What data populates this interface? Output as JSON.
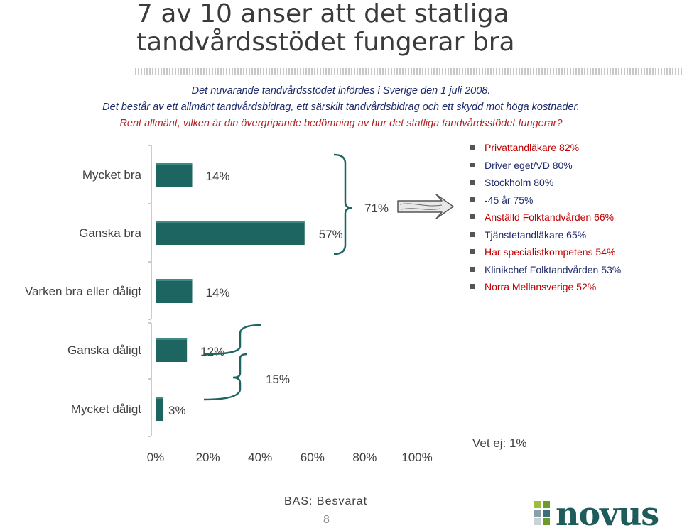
{
  "header": {
    "title_line1": "7 av 10 anser att det statliga",
    "title_line2": "tandvårdsstödet fungerar bra",
    "info_line1": "Det nuvarande tandvårdsstödet infördes i Sverige den 1 juli 2008.",
    "info_line2": "Det består av ett allmänt tandvårdsbidrag, ett särskilt tandvårdsbidrag och ett skydd mot höga kostnader.",
    "question": "Rent allmänt, vilken är din övergripande bedömning av hur det statliga tandvårdsstödet fungerar?"
  },
  "chart_data": {
    "type": "bar",
    "orientation": "horizontal",
    "categories": [
      "Mycket bra",
      "Ganska bra",
      "Varken bra eller dåligt",
      "Ganska dåligt",
      "Mycket dåligt"
    ],
    "values": [
      14,
      57,
      14,
      12,
      3
    ],
    "value_labels": [
      "14%",
      "57%",
      "14%",
      "12%",
      "3%"
    ],
    "xlim": [
      0,
      100
    ],
    "x_ticks": [
      "0%",
      "20%",
      "40%",
      "60%",
      "80%",
      "100%"
    ],
    "bar_color": "#1d6560",
    "bar_highlight": "#3f8a84",
    "groups": [
      {
        "label": "71%",
        "categories": [
          "Mycket bra",
          "Ganska bra"
        ]
      },
      {
        "label": "15%",
        "categories": [
          "Ganska dåligt",
          "Mycket dåligt"
        ]
      }
    ],
    "note": "Vet ej: 1%"
  },
  "legend": {
    "items": [
      {
        "label": "Privattandläkare 82%",
        "color": "red"
      },
      {
        "label": "Driver eget/VD  80%",
        "color": "blue"
      },
      {
        "label": "Stockholm 80%",
        "color": "blue"
      },
      {
        "label": "-45 år 75%",
        "color": "blue"
      },
      {
        "label": "Anställd Folktandvården 66%",
        "color": "red"
      },
      {
        "label": "Tjänstetandläkare 65%",
        "color": "blue"
      },
      {
        "label": "Har specialistkompetens 54%",
        "color": "red"
      },
      {
        "label": "Klinikchef Folktandvården 53%",
        "color": "blue"
      },
      {
        "label": "Norra Mellansverige 52%",
        "color": "red"
      }
    ]
  },
  "footer": {
    "base": "BAS: Besvarat",
    "page_number": "8",
    "logo_text": "novus"
  }
}
